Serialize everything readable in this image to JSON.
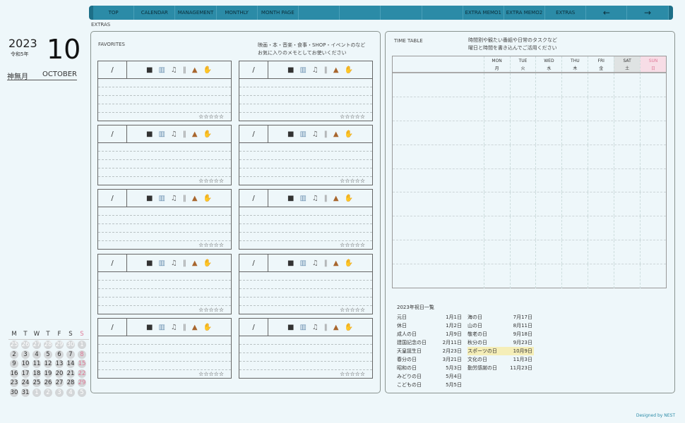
{
  "nav": {
    "items": [
      "TOP",
      "CALENDAR",
      "MANAGEMENT",
      "MONTHLY",
      "MONTH PAGE",
      "",
      "",
      "",
      "",
      "EXTRA MEMO1",
      "EXTRA MEMO2",
      "EXTRAS",
      "←",
      "→"
    ],
    "color": "#2b8ba7"
  },
  "breadcrumb": "EXTRAS",
  "date": {
    "year": "2023",
    "era": "令和5年",
    "month": "10",
    "month_jp": "神無月",
    "month_en": "OCTOBER"
  },
  "mini_calendar": {
    "weekdays": [
      "M",
      "T",
      "W",
      "T",
      "F",
      "S",
      "S"
    ],
    "weeks": [
      [
        "25",
        "26",
        "27",
        "28",
        "29",
        "30",
        "1"
      ],
      [
        "2",
        "3",
        "4",
        "5",
        "6",
        "7",
        "8"
      ],
      [
        "9",
        "10",
        "11",
        "12",
        "13",
        "14",
        "15"
      ],
      [
        "16",
        "17",
        "18",
        "19",
        "20",
        "21",
        "22"
      ],
      [
        "23",
        "24",
        "25",
        "26",
        "27",
        "28",
        "29"
      ],
      [
        "30",
        "31",
        "1",
        "2",
        "3",
        "4",
        "5"
      ]
    ],
    "sunday_color": "#e07a98"
  },
  "favorites": {
    "title": "FAVORITES",
    "note1": "映画・本・音楽・食事・SHOP・イベントのなど",
    "note2": "お気に入りのメモとしてお使いください",
    "slash": "/",
    "stars": "☆☆☆☆☆",
    "icons": [
      "movie-camera-icon",
      "book-icon",
      "music-icon",
      "cutlery-icon",
      "bag-icon",
      "clapping-icon"
    ]
  },
  "timetable": {
    "title": "TIME TABLE",
    "note1": "時間割や観たい番組や日常のタスクなど",
    "note2": "曜日と時間を書き込んでご活用ください",
    "days": [
      {
        "en": "MON",
        "jp": "月"
      },
      {
        "en": "TUE",
        "jp": "火"
      },
      {
        "en": "WED",
        "jp": "水"
      },
      {
        "en": "THU",
        "jp": "木"
      },
      {
        "en": "FRI",
        "jp": "金"
      },
      {
        "en": "SAT",
        "jp": "土"
      },
      {
        "en": "SUN",
        "jp": "日"
      }
    ]
  },
  "holidays": {
    "title": "2023年祝日一覧",
    "left": [
      [
        "元日",
        "1月1日"
      ],
      [
        "休日",
        "1月2日"
      ],
      [
        "成人の日",
        "1月9日"
      ],
      [
        "建国記念の日",
        "2月11日"
      ],
      [
        "天皇誕生日",
        "2月23日"
      ],
      [
        "春分の日",
        "3月21日"
      ],
      [
        "昭和の日",
        "5月3日"
      ],
      [
        "みどりの日",
        "5月4日"
      ],
      [
        "こどもの日",
        "5月5日"
      ]
    ],
    "right": [
      [
        "海の日",
        "7月17日"
      ],
      [
        "山の日",
        "8月11日"
      ],
      [
        "敬老の日",
        "9月18日"
      ],
      [
        "秋分の日",
        "9月23日"
      ],
      [
        "スポーツの日",
        "10月9日"
      ],
      [
        "文化の日",
        "11月3日"
      ],
      [
        "勤労感謝の日",
        "11月23日"
      ]
    ],
    "highlight_color": "#f5eeb8"
  },
  "footer": "Designed by NEST"
}
